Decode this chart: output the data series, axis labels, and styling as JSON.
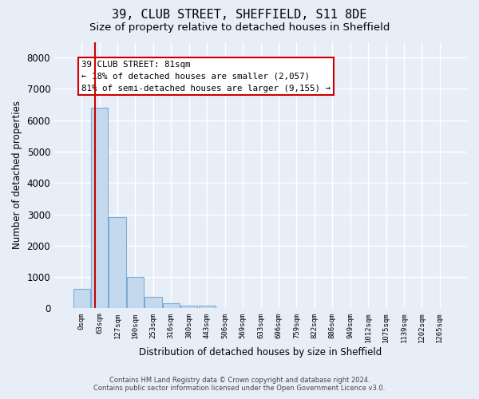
{
  "title": "39, CLUB STREET, SHEFFIELD, S11 8DE",
  "subtitle": "Size of property relative to detached houses in Sheffield",
  "xlabel": "Distribution of detached houses by size in Sheffield",
  "ylabel": "Number of detached properties",
  "categories": [
    "0sqm",
    "63sqm",
    "127sqm",
    "190sqm",
    "253sqm",
    "316sqm",
    "380sqm",
    "443sqm",
    "506sqm",
    "569sqm",
    "633sqm",
    "696sqm",
    "759sqm",
    "822sqm",
    "886sqm",
    "949sqm",
    "1012sqm",
    "1075sqm",
    "1139sqm",
    "1202sqm",
    "1265sqm"
  ],
  "bar_values": [
    620,
    6400,
    2920,
    1000,
    375,
    175,
    100,
    95,
    0,
    0,
    0,
    0,
    0,
    0,
    0,
    0,
    0,
    0,
    0,
    0,
    0
  ],
  "bar_color": "#c5d9ee",
  "bar_edge_color": "#7aadd4",
  "marker_color": "#cc0000",
  "annotation_line1": "39 CLUB STREET: 81sqm",
  "annotation_line2": "← 18% of detached houses are smaller (2,057)",
  "annotation_line3": "81% of semi-detached houses are larger (9,155) →",
  "ylim": [
    0,
    8500
  ],
  "yticks": [
    0,
    1000,
    2000,
    3000,
    4000,
    5000,
    6000,
    7000,
    8000
  ],
  "background_color": "#e8eef8",
  "grid_color": "#ffffff",
  "footer_line1": "Contains HM Land Registry data © Crown copyright and database right 2024.",
  "footer_line2": "Contains public sector information licensed under the Open Government Licence v3.0."
}
